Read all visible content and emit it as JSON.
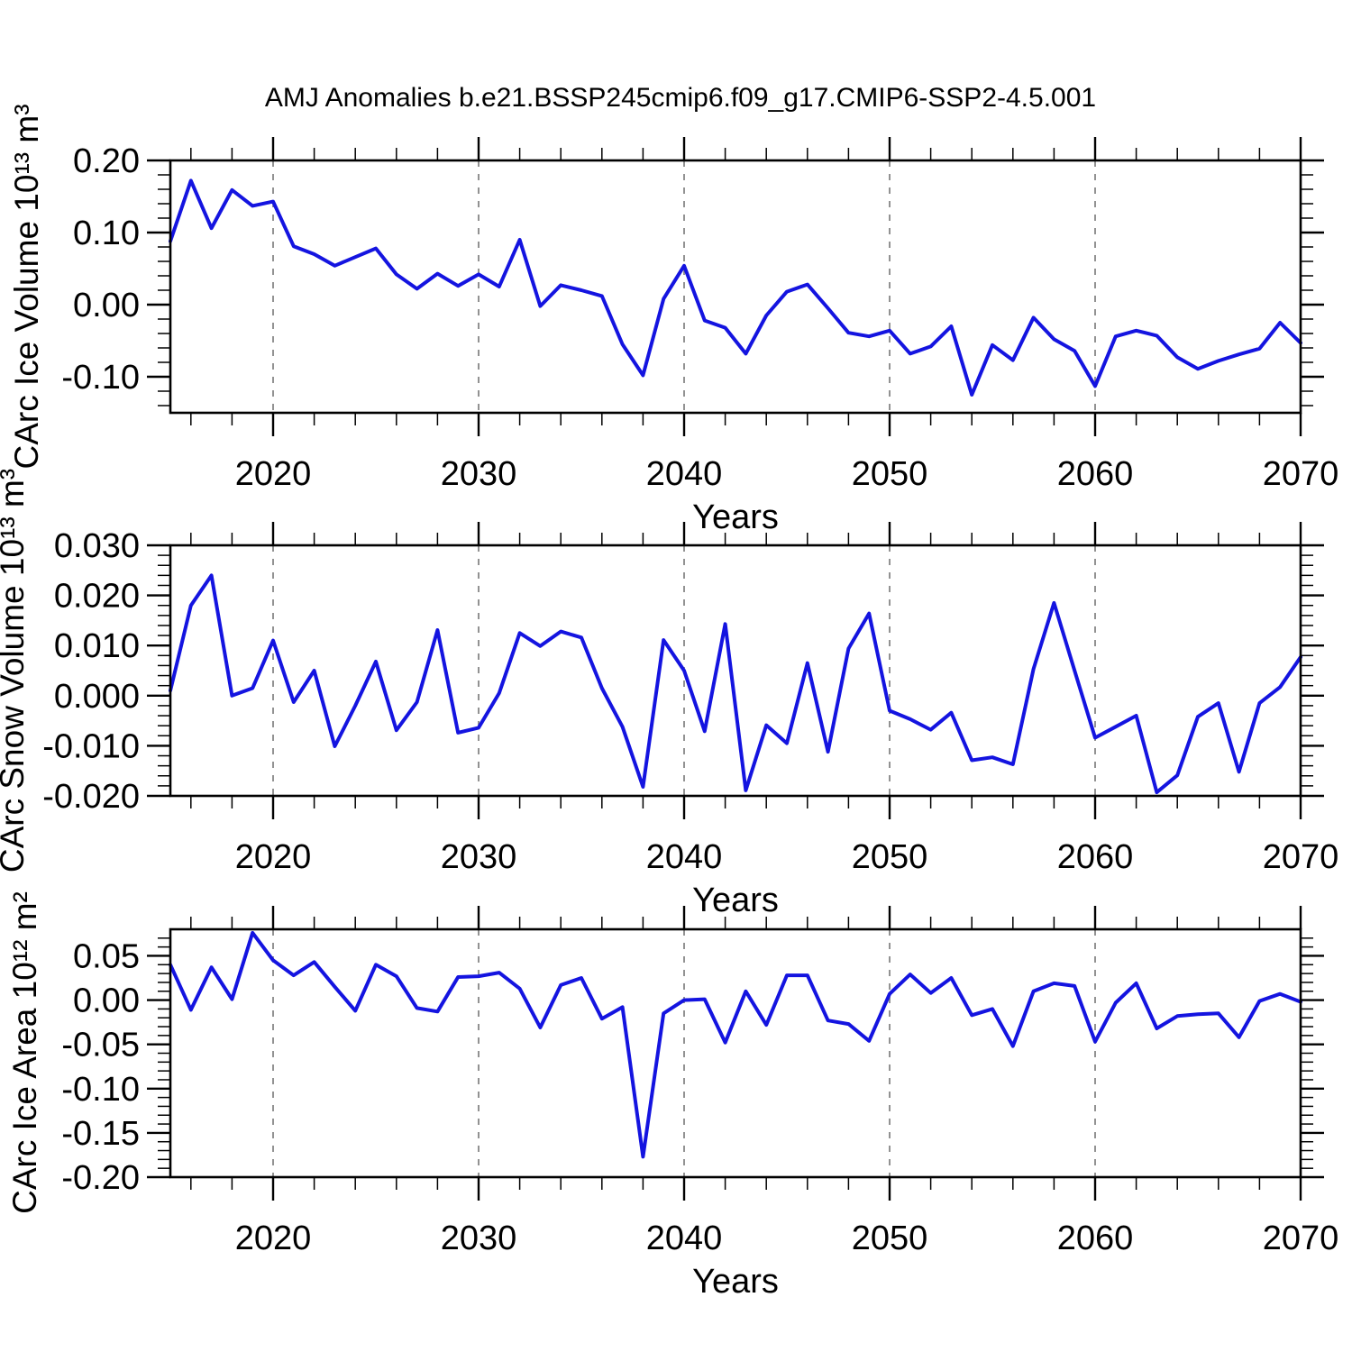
{
  "chart_data": {
    "type": "line",
    "title": "AMJ Anomalies b.e21.BSSP245cmip6.f09_g17.CMIP6-SSP2-4.5.001",
    "xlabel": "Years",
    "line_color": "#1414e0",
    "grid": "vertical-dashed-at-decades",
    "x_range": [
      2015,
      2070
    ],
    "x": [
      2015,
      2016,
      2017,
      2018,
      2019,
      2020,
      2021,
      2022,
      2023,
      2024,
      2025,
      2026,
      2027,
      2028,
      2029,
      2030,
      2031,
      2032,
      2033,
      2034,
      2035,
      2036,
      2037,
      2038,
      2039,
      2040,
      2041,
      2042,
      2043,
      2044,
      2045,
      2046,
      2047,
      2048,
      2049,
      2050,
      2051,
      2052,
      2053,
      2054,
      2055,
      2056,
      2057,
      2058,
      2059,
      2060,
      2061,
      2062,
      2063,
      2064,
      2065,
      2066,
      2067,
      2068,
      2069,
      2070
    ],
    "x_major_ticks": [
      2020,
      2030,
      2040,
      2050,
      2060,
      2070
    ],
    "x_tick_labels": [
      "2020",
      "2030",
      "2040",
      "2050",
      "2060",
      "2070"
    ],
    "x_minor_step": 2,
    "x_gridlines": [
      2020,
      2030,
      2040,
      2050,
      2060
    ],
    "panels": [
      {
        "id": "ice-volume",
        "ylabel": "CArc Ice Volume 10¹³ m³",
        "ylim": [
          -0.15,
          0.2
        ],
        "y_ticks": [
          0.2,
          0.1,
          0.0,
          -0.1
        ],
        "y_tick_labels": [
          "0.20",
          "0.10",
          "0.00",
          "-0.10"
        ],
        "y_minor_step": 0.02,
        "values": [
          0.088,
          0.172,
          0.106,
          0.159,
          0.137,
          0.143,
          0.081,
          0.07,
          0.054,
          0.066,
          0.078,
          0.042,
          0.022,
          0.043,
          0.026,
          0.042,
          0.025,
          0.09,
          -0.002,
          0.027,
          0.02,
          0.012,
          -0.055,
          -0.098,
          0.008,
          0.054,
          -0.022,
          -0.032,
          -0.068,
          -0.015,
          0.018,
          0.028,
          -0.005,
          -0.039,
          -0.044,
          -0.036,
          -0.068,
          -0.058,
          -0.03,
          -0.125,
          -0.056,
          -0.077,
          -0.018,
          -0.048,
          -0.064,
          -0.113,
          -0.044,
          -0.036,
          -0.043,
          -0.073,
          -0.089,
          -0.078,
          -0.069,
          -0.061,
          -0.025,
          -0.053
        ]
      },
      {
        "id": "snow-volume",
        "ylabel": "CArc Snow Volume 10¹³ m³",
        "ylim": [
          -0.02,
          0.03
        ],
        "y_ticks": [
          0.03,
          0.02,
          0.01,
          0.0,
          -0.01,
          -0.02
        ],
        "y_tick_labels": [
          "0.030",
          "0.020",
          "0.010",
          "0.000",
          "-0.010",
          "-0.020"
        ],
        "y_minor_step": 0.002,
        "values": [
          0.001,
          0.018,
          0.024,
          0.0,
          0.0015,
          0.011,
          -0.0013,
          0.005,
          -0.0101,
          -0.002,
          0.0068,
          -0.0069,
          -0.0013,
          0.0131,
          -0.0074,
          -0.0064,
          0.0005,
          0.0125,
          0.0099,
          0.0128,
          0.0116,
          0.0015,
          -0.0062,
          -0.0182,
          0.0111,
          0.005,
          -0.0071,
          0.0143,
          -0.0189,
          -0.0059,
          -0.0095,
          0.0065,
          -0.0112,
          0.0094,
          0.0164,
          -0.003,
          -0.0047,
          -0.0068,
          -0.0034,
          -0.0129,
          -0.0123,
          -0.0137,
          0.0053,
          0.0185,
          0.005,
          -0.0084,
          -0.0062,
          -0.004,
          -0.0193,
          -0.0159,
          -0.0042,
          -0.0015,
          -0.0152,
          -0.0015,
          0.0017,
          0.0077
        ]
      },
      {
        "id": "ice-area",
        "ylabel": "CArc Ice Area 10¹² m²",
        "ylim": [
          -0.2,
          0.08
        ],
        "y_ticks": [
          0.05,
          0.0,
          -0.05,
          -0.1,
          -0.15,
          -0.2
        ],
        "y_tick_labels": [
          "0.05",
          "0.00",
          "-0.05",
          "-0.10",
          "-0.15",
          "-0.20"
        ],
        "y_minor_step": 0.01,
        "values": [
          0.04,
          -0.011,
          0.037,
          0.001,
          0.076,
          0.045,
          0.028,
          0.043,
          0.015,
          -0.012,
          0.04,
          0.027,
          -0.009,
          -0.013,
          0.026,
          0.027,
          0.031,
          0.013,
          -0.031,
          0.017,
          0.025,
          -0.021,
          -0.008,
          -0.177,
          -0.015,
          0.0,
          0.001,
          -0.048,
          0.01,
          -0.028,
          0.028,
          0.028,
          -0.023,
          -0.027,
          -0.046,
          0.007,
          0.029,
          0.008,
          0.025,
          -0.017,
          -0.01,
          -0.052,
          0.01,
          0.019,
          0.016,
          -0.047,
          -0.003,
          0.019,
          -0.032,
          -0.018,
          -0.016,
          -0.015,
          -0.042,
          -0.001,
          0.007,
          -0.002
        ]
      }
    ]
  }
}
